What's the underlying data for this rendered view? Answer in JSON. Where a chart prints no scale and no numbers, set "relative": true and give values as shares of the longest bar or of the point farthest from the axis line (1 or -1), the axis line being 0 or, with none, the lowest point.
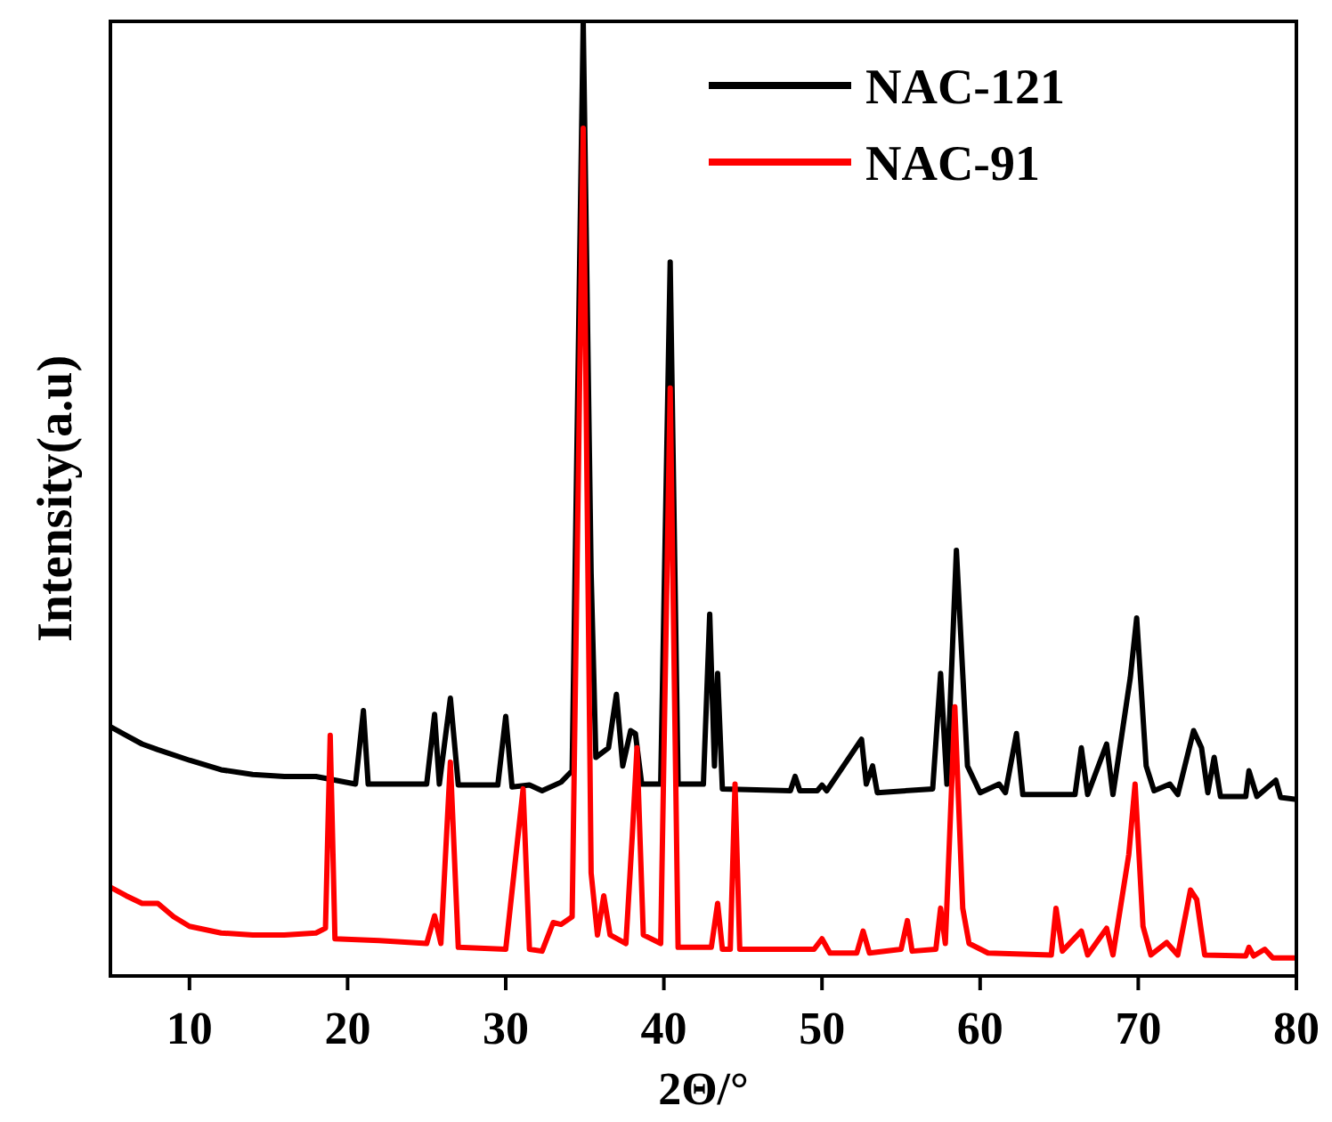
{
  "chart_data": {
    "type": "line",
    "xlabel": "2Θ/°",
    "ylabel": "Intensity(a.u)",
    "relative": true,
    "xlim": [
      5,
      80
    ],
    "xticks": [
      10,
      20,
      30,
      40,
      50,
      60,
      70,
      80
    ],
    "legend": "top right",
    "grid": false,
    "line_style": "solid",
    "series": [
      {
        "name": "NAC-121",
        "color": "#000000",
        "x": [
          5,
          6,
          7,
          8,
          10,
          12,
          14,
          16,
          18,
          20.5,
          21,
          21.3,
          25,
          25.5,
          25.8,
          26.5,
          27,
          29.5,
          30,
          30.4,
          31.5,
          32.3,
          33.5,
          34.2,
          34.9,
          35.4,
          35.7,
          36.5,
          37,
          37.4,
          37.9,
          38.2,
          38.6,
          39.8,
          40.4,
          40.9,
          42.5,
          42.9,
          43.2,
          43.4,
          43.7,
          48,
          48.3,
          48.6,
          49.7,
          50,
          50.3,
          52.5,
          52.8,
          53.2,
          53.5,
          57,
          57.5,
          57.9,
          58.5,
          59.2,
          60,
          61.2,
          61.6,
          62.3,
          62.7,
          66,
          66.4,
          66.8,
          68,
          68.4,
          69.5,
          69.9,
          70.5,
          71,
          72,
          72.5,
          73.5,
          74,
          74.4,
          74.8,
          75.2,
          76.8,
          77,
          77.5,
          78.7,
          79,
          80
        ],
        "values": [
          0.261,
          0.252,
          0.243,
          0.237,
          0.226,
          0.216,
          0.211,
          0.209,
          0.209,
          0.201,
          0.278,
          0.201,
          0.201,
          0.274,
          0.201,
          0.291,
          0.2,
          0.2,
          0.272,
          0.198,
          0.2,
          0.194,
          0.203,
          0.215,
          1,
          0.422,
          0.229,
          0.239,
          0.295,
          0.22,
          0.257,
          0.254,
          0.201,
          0.201,
          0.748,
          0.201,
          0.201,
          0.379,
          0.22,
          0.317,
          0.196,
          0.194,
          0.209,
          0.194,
          0.194,
          0.2,
          0.194,
          0.248,
          0.201,
          0.22,
          0.192,
          0.196,
          0.317,
          0.201,
          0.446,
          0.22,
          0.192,
          0.201,
          0.192,
          0.254,
          0.19,
          0.19,
          0.239,
          0.19,
          0.243,
          0.19,
          0.313,
          0.375,
          0.22,
          0.194,
          0.201,
          0.19,
          0.257,
          0.239,
          0.192,
          0.229,
          0.188,
          0.188,
          0.215,
          0.188,
          0.205,
          0.187,
          0.185
        ]
      },
      {
        "name": "NAC-91",
        "color": "#ff0000",
        "x": [
          5,
          6,
          7,
          8,
          9,
          10,
          12,
          14,
          16,
          18,
          18.6,
          18.9,
          19.2,
          22,
          25,
          25.5,
          25.9,
          26.5,
          27,
          30,
          31.1,
          31.5,
          32.3,
          33,
          33.5,
          34.2,
          34.9,
          35.4,
          35.8,
          36.2,
          36.6,
          37.6,
          38,
          38.3,
          38.7,
          39.8,
          40.4,
          40.9,
          43,
          43.4,
          43.7,
          44.2,
          44.5,
          44.8,
          49.5,
          50,
          50.5,
          52.2,
          52.6,
          53,
          55,
          55.4,
          55.7,
          57.2,
          57.5,
          57.8,
          58.4,
          58.9,
          59.3,
          60.5,
          64.5,
          64.8,
          65.2,
          66.4,
          66.8,
          68,
          68.4,
          69.4,
          69.8,
          70.3,
          70.8,
          71.8,
          72.5,
          73.3,
          73.7,
          74.2,
          76.8,
          77,
          77.3,
          78,
          78.5,
          80
        ],
        "values": [
          0.093,
          0.084,
          0.076,
          0.076,
          0.062,
          0.052,
          0.045,
          0.043,
          0.043,
          0.045,
          0.05,
          0.252,
          0.039,
          0.037,
          0.034,
          0.063,
          0.034,
          0.224,
          0.03,
          0.028,
          0.196,
          0.028,
          0.026,
          0.056,
          0.054,
          0.062,
          0.888,
          0.108,
          0.043,
          0.084,
          0.043,
          0.034,
          0.146,
          0.239,
          0.043,
          0.034,
          0.616,
          0.03,
          0.03,
          0.076,
          0.028,
          0.028,
          0.201,
          0.028,
          0.028,
          0.039,
          0.024,
          0.024,
          0.047,
          0.024,
          0.028,
          0.058,
          0.026,
          0.028,
          0.071,
          0.034,
          0.282,
          0.071,
          0.034,
          0.024,
          0.022,
          0.071,
          0.026,
          0.047,
          0.022,
          0.05,
          0.022,
          0.127,
          0.201,
          0.052,
          0.022,
          0.035,
          0.022,
          0.09,
          0.08,
          0.022,
          0.021,
          0.03,
          0.021,
          0.028,
          0.019,
          0.019
        ]
      }
    ]
  }
}
